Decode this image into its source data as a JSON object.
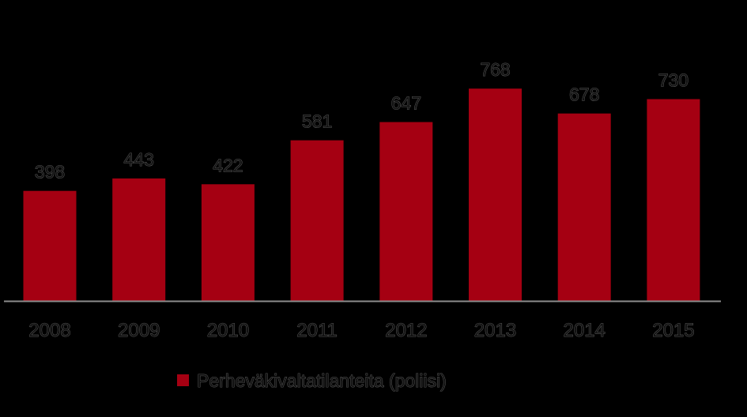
{
  "chart_data": {
    "type": "bar",
    "categories": [
      "2008",
      "2009",
      "2010",
      "2011",
      "2012",
      "2013",
      "2014",
      "2015"
    ],
    "series": [
      {
        "name": "Perheväkivaltatilanteita (poliisi)",
        "values": [
          398,
          443,
          422,
          581,
          647,
          768,
          678,
          730
        ],
        "color": "#a50012"
      }
    ],
    "data_labels": [
      "398",
      "443",
      "422",
      "581",
      "647",
      "768",
      "678",
      "730"
    ],
    "title": "",
    "xlabel": "",
    "ylabel": "",
    "ylim": [
      0,
      850
    ],
    "grid": false,
    "legend": "bottom-center",
    "colors": {
      "background": "#000000",
      "bar": "#a50012",
      "axis": "#8c8c8c",
      "text": "#111111"
    }
  }
}
